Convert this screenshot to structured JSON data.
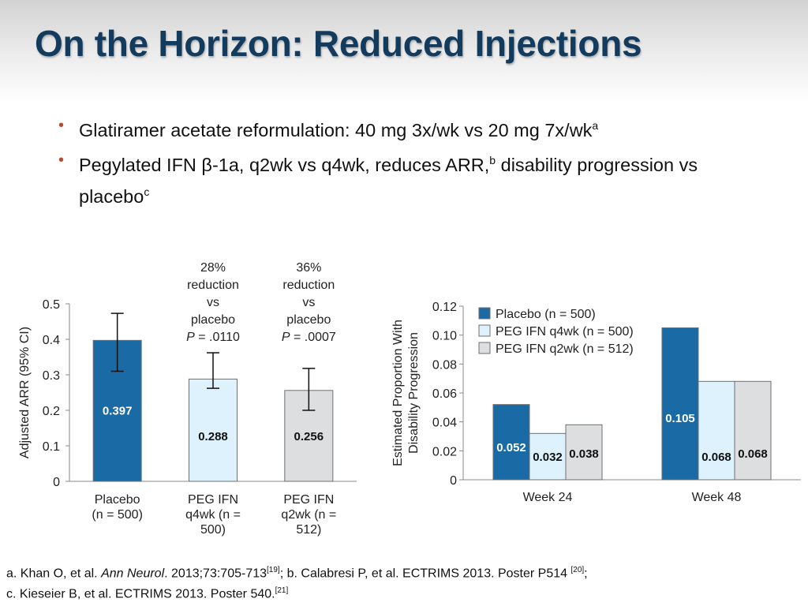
{
  "title": "On the Horizon: Reduced Injections",
  "bullets": [
    {
      "text": "Glatiramer acetate reformulation: 40 mg 3x/wk vs 20 mg 7x/wk",
      "sup": "a",
      "rest": "",
      "sup2": ""
    },
    {
      "text": "Pegylated IFN β-1a, q2wk vs q4wk, reduces ARR,",
      "sup": "b",
      "rest": " disability progression vs placebo",
      "sup2": "c"
    }
  ],
  "colors": {
    "placebo": "#1a6aa5",
    "q4wk": "#ddf2fc",
    "q2wk": "#dcdee0",
    "bullet": "#b84b2a",
    "title": "#123b5e"
  },
  "chart_data": [
    {
      "type": "bar",
      "ylabel": "Adjusted ARR (95% CI)",
      "xlabel": "",
      "ylim": [
        0,
        0.5
      ],
      "yticks": [
        "0",
        "0.1",
        "0.2",
        "0.3",
        "0.4",
        "0.5"
      ],
      "categories": [
        [
          "Placebo",
          "(n = 500)"
        ],
        [
          "PEG IFN",
          "q4wk (n =",
          "500)"
        ],
        [
          "PEG IFN",
          "q2wk (n =",
          "512)"
        ]
      ],
      "values": [
        0.397,
        0.288,
        0.256
      ],
      "value_labels": [
        "0.397",
        "0.288",
        "0.256"
      ],
      "ci_low": [
        0.31,
        0.262,
        0.2
      ],
      "ci_high": [
        0.473,
        0.362,
        0.318
      ],
      "bar_colors": [
        "#1a6aa5",
        "#ddf2fc",
        "#dcdee0"
      ],
      "annotations": [
        {
          "bar": 1,
          "lines": [
            "28%",
            "reduction",
            "vs",
            "placebo"
          ],
          "p_label": "P",
          "p_value": " = .0110"
        },
        {
          "bar": 2,
          "lines": [
            "36%",
            "reduction",
            "vs",
            "placebo"
          ],
          "p_label": "P",
          "p_value": " = .0007"
        }
      ]
    },
    {
      "type": "bar",
      "ylabel": [
        "Estimated Proportion With",
        "Disability Progression"
      ],
      "xlabel": "",
      "ylim": [
        0,
        0.12
      ],
      "yticks": [
        "0",
        "0.02",
        "0.04",
        "0.06",
        "0.08",
        "0.10",
        "0.12"
      ],
      "categories": [
        "Week 24",
        "Week 48"
      ],
      "series": [
        {
          "name": "Placebo (n = 500)",
          "values": [
            0.052,
            0.105
          ],
          "labels": [
            "0.052",
            "0.105"
          ],
          "color": "#1a6aa5"
        },
        {
          "name": "PEG IFN q4wk (n = 500)",
          "values": [
            0.032,
            0.068
          ],
          "labels": [
            "0.032",
            "0.068"
          ],
          "color": "#ddf2fc"
        },
        {
          "name": "PEG IFN q2wk (n = 512)",
          "values": [
            0.038,
            0.068
          ],
          "labels": [
            "0.038",
            "0.068"
          ],
          "color": "#dcdee0"
        }
      ],
      "legend": "top-left"
    }
  ],
  "references": {
    "line1": {
      "a": "a. Khan O, et al. ",
      "journal": "Ann Neurol",
      "rest": ". 2013;73:705-713",
      "sup1": "[19]",
      "b": "; b. Calabresi P, et al. ECTRIMS 2013. Poster P514 ",
      "sup2": "[20]",
      "end": ";"
    },
    "line2": {
      "c": "c. Kieseier B, et al. ECTRIMS 2013. Poster 540.",
      "sup": "[21]"
    }
  }
}
